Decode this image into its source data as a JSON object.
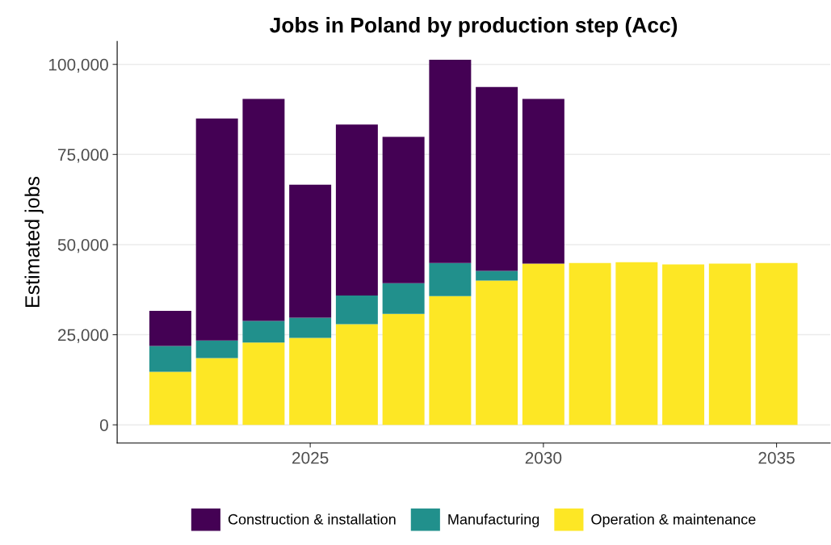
{
  "chart_data": {
    "type": "bar",
    "title": "Jobs in Poland by production step (Acc)",
    "ylabel": "Estimated jobs",
    "x": [
      2022,
      2023,
      2024,
      2025,
      2026,
      2027,
      2028,
      2029,
      2030,
      2031,
      2032,
      2033,
      2034,
      2035
    ],
    "stacked": true,
    "series": [
      {
        "name": "Operation & maintenance",
        "color": "#fde725",
        "values": [
          14700,
          18500,
          22800,
          24100,
          27900,
          30800,
          35700,
          40000,
          44700,
          44900,
          45100,
          44500,
          44700,
          44900
        ]
      },
      {
        "name": "Manufacturing",
        "color": "#21908c",
        "values": [
          7200,
          4900,
          6000,
          5600,
          8000,
          8500,
          9200,
          2700,
          null,
          null,
          null,
          null,
          null,
          null
        ]
      },
      {
        "name": "Construction & installation",
        "color": "#440154",
        "values": [
          9700,
          61600,
          61600,
          36900,
          47400,
          40600,
          56400,
          51000,
          45700,
          null,
          null,
          null,
          null,
          null
        ]
      }
    ],
    "xlim": [
      2020.86,
      2036.15
    ],
    "xticks": [
      2025,
      2030,
      2035
    ],
    "ylim": [
      -5065,
      106365
    ],
    "yticks": [
      {
        "value": 0,
        "label": "0"
      },
      {
        "value": 25000,
        "label": "25,000"
      },
      {
        "value": 50000,
        "label": "50,000"
      },
      {
        "value": 75000,
        "label": "75,000"
      },
      {
        "value": 100000,
        "label": "100,000"
      }
    ],
    "grid": "y",
    "legend": "bottom"
  }
}
